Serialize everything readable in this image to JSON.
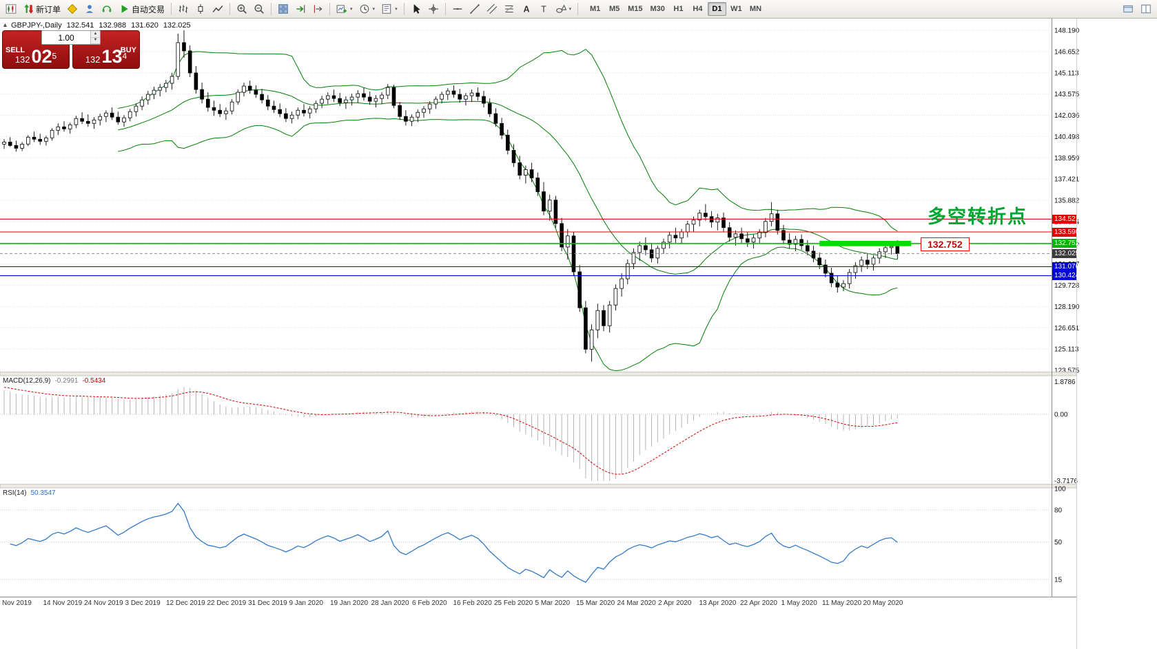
{
  "toolbar": {
    "new_order_label": "新订单",
    "autotrading_label": "自动交易",
    "timeframes": [
      "M1",
      "M5",
      "M15",
      "M30",
      "H1",
      "H4",
      "D1",
      "W1",
      "MN"
    ],
    "active_timeframe": "D1"
  },
  "icons": {
    "caret_down": "▾",
    "spinner_up": "▲",
    "spinner_down": "▼",
    "oct_toggle": "▲",
    "text_tool": "A",
    "label_tool": "T"
  },
  "chart_header": {
    "symbol_period": "GBPJPY-,Daily",
    "open": "132.541",
    "high": "132.988",
    "low": "131.620",
    "close": "132.025"
  },
  "one_click": {
    "sell_label": "SELL",
    "buy_label": "BUY",
    "volume": "1.00",
    "sell_price": {
      "big": "132",
      "pips": "02",
      "pt": "5"
    },
    "buy_price": {
      "big": "132",
      "pips": "13",
      "pt": "4"
    }
  },
  "indicators": {
    "macd_label": "MACD(12,26,9)",
    "macd_main": "-0.2991",
    "macd_signal": "-0.5434",
    "rsi_label": "RSI(14)",
    "rsi_value": "50.3547"
  },
  "annotations": {
    "turning_point": "多空转折点",
    "level_callout": "132.752"
  },
  "axes": {
    "price_labels": [
      "148.190",
      "146.652",
      "145.113",
      "143.575",
      "142.036",
      "140.498",
      "138.959",
      "137.421",
      "135.882",
      "134.344",
      "132.805",
      "131.267",
      "129.728",
      "128.190",
      "126.651",
      "125.113",
      "123.575"
    ],
    "macd_labels": {
      "max": "1.8786",
      "zero": "0.00",
      "min": "-3.7176"
    },
    "rsi_labels": [
      {
        "value": 100,
        "text": "100"
      },
      {
        "value": 80,
        "text": "80"
      },
      {
        "value": 50,
        "text": "50"
      },
      {
        "value": 15,
        "text": "15"
      }
    ],
    "date_labels": [
      "Nov 2019",
      "14 Nov 2019",
      "24 Nov 2019",
      "3 Dec 2019",
      "12 Dec 2019",
      "22 Dec 2019",
      "31 Dec 2019",
      "9 Jan 2020",
      "19 Jan 2020",
      "28 Jan 2020",
      "6 Feb 2020",
      "16 Feb 2020",
      "25 Feb 2020",
      "5 Mar 2020",
      "15 Mar 2020",
      "24 Mar 2020",
      "2 Apr 2020",
      "13 Apr 2020",
      "22 Apr 2020",
      "1 May 2020",
      "11 May 2020",
      "20 May 2020"
    ]
  },
  "price_tags": [
    {
      "text": "134.521",
      "price": 134.521,
      "bg": "#e00000"
    },
    {
      "text": "133.590",
      "price": 133.59,
      "bg": "#e00000"
    },
    {
      "text": "132.752",
      "price": 132.752,
      "bg": "#00b400"
    },
    {
      "text": "132.025",
      "price": 132.025,
      "bg": "#3a3a3a"
    },
    {
      "text": "131.076",
      "price": 131.076,
      "bg": "#0000d8"
    },
    {
      "text": "130.424",
      "price": 130.424,
      "bg": "#0000d8"
    }
  ],
  "chart_data": {
    "type": "candlestick",
    "symbol": "GBPJPY-",
    "timeframe": "Daily",
    "price_axis_range": [
      123.575,
      148.19
    ],
    "bollinger": {
      "period": 20,
      "deviation": 2,
      "color": "#007f00"
    },
    "macd": {
      "fast": 12,
      "slow": 26,
      "signal": 9,
      "current_main": -0.2991,
      "current_signal": -0.5434,
      "range": [
        -3.7176,
        1.8786
      ],
      "histogram_color": "#b4b4b4",
      "signal_color": "#d40000"
    },
    "rsi": {
      "period": 14,
      "current": 50.3547,
      "range": [
        0,
        100
      ],
      "levels": [
        80,
        50,
        15
      ],
      "line_color": "#3079c8"
    },
    "horizontal_lines": [
      {
        "price": 134.521,
        "color": "#e00000",
        "width": 1.1
      },
      {
        "price": 133.59,
        "color": "#e00000",
        "width": 1.1
      },
      {
        "price": 132.752,
        "color": "#00c000",
        "width": 1.6
      },
      {
        "price": 131.076,
        "color": "#0000e0",
        "width": 1.1
      },
      {
        "price": 130.424,
        "color": "#0000e0",
        "width": 1.1
      }
    ],
    "current_price": 132.025,
    "highlight_rect": {
      "price_top": 132.95,
      "price_bottom": 132.56,
      "bar_start": 136,
      "bar_end": 151.3,
      "color": "#00dd00"
    },
    "ohlc": [
      [
        139.95,
        140.3,
        139.6,
        140.1
      ],
      [
        140.1,
        140.45,
        139.75,
        139.85
      ],
      [
        139.85,
        140.2,
        139.4,
        139.65
      ],
      [
        139.65,
        140.1,
        139.45,
        139.95
      ],
      [
        139.95,
        140.6,
        139.8,
        140.45
      ],
      [
        140.45,
        140.85,
        140.1,
        140.3
      ],
      [
        140.3,
        140.7,
        139.9,
        140.15
      ],
      [
        140.15,
        140.55,
        139.85,
        140.4
      ],
      [
        140.4,
        141.1,
        140.2,
        140.95
      ],
      [
        140.95,
        141.45,
        140.6,
        141.2
      ],
      [
        141.2,
        141.6,
        140.85,
        141.05
      ],
      [
        141.05,
        141.5,
        140.7,
        141.35
      ],
      [
        141.35,
        142.0,
        141.1,
        141.8
      ],
      [
        141.8,
        142.25,
        141.4,
        141.6
      ],
      [
        141.6,
        142.1,
        141.2,
        141.45
      ],
      [
        141.45,
        141.9,
        141.05,
        141.7
      ],
      [
        141.7,
        142.15,
        141.3,
        141.95
      ],
      [
        141.95,
        142.4,
        141.55,
        142.2
      ],
      [
        142.2,
        142.6,
        141.7,
        141.9
      ],
      [
        141.9,
        142.3,
        141.35,
        141.55
      ],
      [
        141.55,
        142.05,
        141.2,
        141.85
      ],
      [
        141.85,
        142.5,
        141.6,
        142.3
      ],
      [
        142.3,
        142.9,
        141.95,
        142.7
      ],
      [
        142.7,
        143.4,
        142.4,
        143.15
      ],
      [
        143.15,
        143.8,
        142.8,
        143.55
      ],
      [
        143.55,
        144.1,
        143.2,
        143.85
      ],
      [
        143.85,
        144.3,
        143.4,
        144.05
      ],
      [
        144.05,
        144.6,
        143.7,
        144.35
      ],
      [
        144.35,
        145.1,
        143.9,
        144.85
      ],
      [
        144.85,
        147.95,
        144.6,
        147.3
      ],
      [
        147.3,
        148.19,
        146.2,
        146.7
      ],
      [
        146.7,
        147.1,
        144.8,
        145.1
      ],
      [
        145.1,
        145.6,
        143.6,
        143.9
      ],
      [
        143.9,
        144.4,
        142.9,
        143.2
      ],
      [
        143.2,
        143.7,
        142.3,
        142.6
      ],
      [
        142.6,
        143.1,
        142.0,
        142.4
      ],
      [
        142.4,
        142.85,
        141.9,
        142.15
      ],
      [
        142.15,
        142.6,
        141.7,
        142.35
      ],
      [
        142.35,
        143.2,
        142.1,
        143.0
      ],
      [
        143.0,
        143.9,
        142.8,
        143.7
      ],
      [
        143.7,
        144.4,
        143.4,
        144.15
      ],
      [
        144.15,
        144.55,
        143.6,
        143.85
      ],
      [
        143.85,
        144.2,
        143.3,
        143.55
      ],
      [
        143.55,
        143.95,
        142.9,
        143.15
      ],
      [
        143.15,
        143.5,
        142.4,
        142.7
      ],
      [
        142.7,
        143.1,
        142.2,
        142.45
      ],
      [
        142.45,
        142.9,
        141.9,
        142.15
      ],
      [
        142.15,
        142.55,
        141.55,
        141.8
      ],
      [
        141.8,
        142.3,
        141.45,
        142.05
      ],
      [
        142.05,
        142.6,
        141.75,
        142.4
      ],
      [
        142.4,
        142.85,
        141.95,
        142.2
      ],
      [
        142.2,
        142.7,
        141.8,
        142.5
      ],
      [
        142.5,
        143.1,
        142.2,
        142.9
      ],
      [
        142.9,
        143.45,
        142.55,
        143.2
      ],
      [
        143.2,
        143.7,
        142.85,
        143.45
      ],
      [
        143.45,
        143.9,
        143.0,
        143.25
      ],
      [
        143.25,
        143.65,
        142.7,
        142.95
      ],
      [
        142.95,
        143.4,
        142.5,
        143.15
      ],
      [
        143.15,
        143.6,
        142.75,
        143.35
      ],
      [
        143.35,
        143.85,
        142.95,
        143.6
      ],
      [
        143.6,
        144.05,
        143.1,
        143.35
      ],
      [
        143.35,
        143.75,
        142.8,
        143.05
      ],
      [
        143.05,
        143.5,
        142.6,
        143.25
      ],
      [
        143.25,
        143.7,
        142.85,
        143.5
      ],
      [
        143.5,
        144.3,
        143.2,
        144.05
      ],
      [
        144.05,
        144.25,
        142.55,
        142.75
      ],
      [
        142.75,
        143.0,
        141.7,
        141.95
      ],
      [
        141.95,
        142.4,
        141.3,
        141.6
      ],
      [
        141.6,
        142.1,
        141.25,
        141.9
      ],
      [
        141.9,
        142.45,
        141.55,
        142.25
      ],
      [
        142.25,
        142.7,
        141.85,
        142.5
      ],
      [
        142.5,
        143.05,
        142.15,
        142.85
      ],
      [
        142.85,
        143.4,
        142.5,
        143.2
      ],
      [
        143.2,
        143.75,
        142.9,
        143.55
      ],
      [
        143.55,
        144.0,
        143.15,
        143.8
      ],
      [
        143.8,
        144.2,
        143.3,
        143.55
      ],
      [
        143.55,
        143.95,
        142.95,
        143.2
      ],
      [
        143.2,
        143.65,
        142.75,
        143.45
      ],
      [
        143.45,
        143.9,
        143.0,
        143.65
      ],
      [
        143.65,
        144.05,
        143.1,
        143.4
      ],
      [
        143.4,
        143.8,
        142.6,
        142.9
      ],
      [
        142.9,
        143.25,
        141.9,
        142.15
      ],
      [
        142.15,
        142.55,
        141.2,
        141.45
      ],
      [
        141.45,
        141.85,
        140.3,
        140.6
      ],
      [
        140.6,
        141.0,
        139.2,
        139.5
      ],
      [
        139.5,
        139.95,
        138.3,
        138.6
      ],
      [
        138.6,
        139.1,
        137.4,
        137.7
      ],
      [
        137.7,
        138.4,
        137.1,
        138.1
      ],
      [
        138.1,
        138.6,
        137.2,
        137.5
      ],
      [
        137.5,
        137.9,
        136.2,
        136.5
      ],
      [
        136.5,
        137.2,
        134.8,
        135.1
      ],
      [
        135.1,
        136.3,
        134.4,
        135.9
      ],
      [
        135.9,
        136.2,
        133.9,
        134.2
      ],
      [
        134.2,
        134.6,
        132.2,
        132.5
      ],
      [
        132.5,
        133.8,
        131.6,
        133.3
      ],
      [
        133.3,
        133.6,
        130.4,
        130.7
      ],
      [
        130.7,
        131.2,
        127.8,
        128.1
      ],
      [
        128.1,
        128.6,
        124.8,
        125.1
      ],
      [
        125.1,
        126.9,
        124.2,
        126.5
      ],
      [
        126.5,
        128.4,
        125.9,
        127.9
      ],
      [
        127.9,
        128.3,
        126.4,
        126.8
      ],
      [
        126.8,
        128.6,
        126.3,
        128.3
      ],
      [
        128.3,
        129.8,
        127.9,
        129.5
      ],
      [
        129.5,
        130.6,
        128.9,
        130.2
      ],
      [
        130.2,
        131.6,
        129.8,
        131.3
      ],
      [
        131.3,
        132.4,
        130.9,
        132.1
      ],
      [
        132.1,
        132.9,
        131.5,
        132.6
      ],
      [
        132.6,
        133.2,
        131.9,
        132.3
      ],
      [
        132.3,
        132.8,
        131.4,
        131.7
      ],
      [
        131.7,
        132.6,
        131.3,
        132.4
      ],
      [
        132.4,
        133.1,
        132.0,
        132.85
      ],
      [
        132.85,
        133.6,
        132.4,
        133.35
      ],
      [
        133.35,
        133.9,
        132.8,
        133.15
      ],
      [
        133.15,
        133.8,
        132.7,
        133.6
      ],
      [
        133.6,
        134.4,
        133.2,
        134.15
      ],
      [
        134.15,
        134.7,
        133.6,
        134.45
      ],
      [
        134.45,
        135.2,
        134.0,
        134.95
      ],
      [
        134.95,
        135.6,
        134.4,
        134.7
      ],
      [
        134.7,
        135.1,
        133.9,
        134.3
      ],
      [
        134.3,
        134.9,
        133.7,
        134.6
      ],
      [
        134.6,
        135.0,
        133.6,
        133.9
      ],
      [
        133.9,
        134.3,
        132.9,
        133.2
      ],
      [
        133.2,
        133.7,
        132.6,
        133.45
      ],
      [
        133.45,
        133.9,
        132.8,
        133.1
      ],
      [
        133.1,
        133.6,
        132.5,
        132.85
      ],
      [
        132.85,
        133.4,
        132.4,
        133.15
      ],
      [
        133.15,
        133.8,
        132.8,
        133.55
      ],
      [
        133.55,
        134.6,
        133.2,
        134.35
      ],
      [
        134.35,
        135.75,
        134.0,
        134.9
      ],
      [
        134.9,
        135.2,
        133.4,
        133.7
      ],
      [
        133.7,
        134.1,
        132.7,
        133.0
      ],
      [
        133.0,
        133.5,
        132.4,
        132.7
      ],
      [
        132.7,
        133.3,
        132.2,
        133.05
      ],
      [
        133.05,
        133.4,
        132.3,
        132.6
      ],
      [
        132.6,
        133.0,
        131.9,
        132.2
      ],
      [
        132.2,
        132.6,
        131.4,
        131.7
      ],
      [
        131.7,
        132.1,
        130.9,
        131.2
      ],
      [
        131.2,
        131.6,
        130.3,
        130.6
      ],
      [
        130.6,
        131.0,
        129.6,
        129.9
      ],
      [
        129.9,
        130.4,
        129.2,
        129.6
      ],
      [
        129.6,
        130.1,
        129.3,
        129.85
      ],
      [
        129.85,
        130.9,
        129.5,
        130.65
      ],
      [
        130.65,
        131.4,
        130.2,
        131.15
      ],
      [
        131.15,
        131.8,
        130.7,
        131.55
      ],
      [
        131.55,
        132.0,
        130.9,
        131.25
      ],
      [
        131.25,
        131.9,
        130.8,
        131.7
      ],
      [
        131.7,
        132.4,
        131.3,
        132.15
      ],
      [
        132.15,
        132.7,
        131.7,
        132.45
      ],
      [
        132.45,
        132.85,
        131.95,
        132.541
      ],
      [
        132.541,
        132.988,
        131.62,
        132.025
      ]
    ]
  }
}
